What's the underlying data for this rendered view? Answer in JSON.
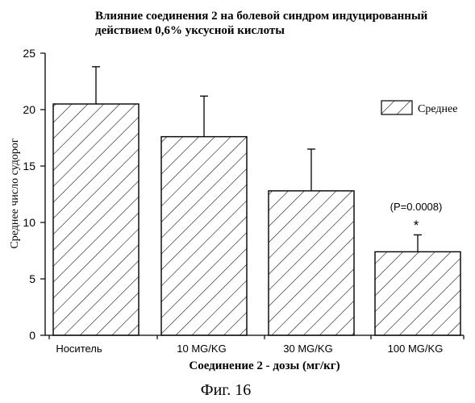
{
  "chart_data": {
    "type": "bar",
    "title_line1": "Влияние соединения 2 на болевой синдром индуцированный",
    "title_line2": "действием 0,6% уксусной кислоты",
    "ylabel": "Среднее число судорог",
    "xlabel": "Соединение 2 - дозы (мг/кг)",
    "figure_caption": "Фиг. 16",
    "ylim": [
      0,
      25
    ],
    "yticks": [
      0,
      5,
      10,
      15,
      20,
      25
    ],
    "categories": [
      "Носитель",
      "10 MG/KG",
      "30 MG/KG",
      "100 MG/KG"
    ],
    "series": [
      {
        "name": "Среднее",
        "values": [
          20.5,
          17.6,
          12.8,
          7.4
        ],
        "error": [
          3.3,
          3.6,
          3.7,
          1.5
        ]
      }
    ],
    "annotation_text": "(P=0.0008)",
    "annotation_marker": "*",
    "annotation_category_index": 3,
    "legend_position": "top-right",
    "bar_fill": "diagonal-hatch",
    "grid": false,
    "colors": {
      "ink": "#000000",
      "background": "#ffffff"
    }
  }
}
